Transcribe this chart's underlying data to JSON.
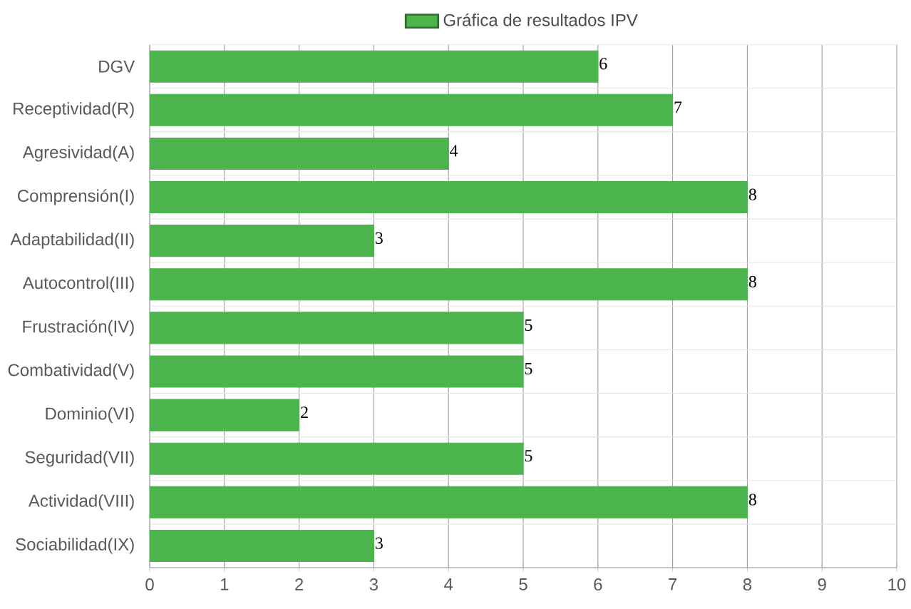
{
  "chart_data": {
    "type": "bar",
    "orientation": "horizontal",
    "categories": [
      "DGV",
      "Receptividad(R)",
      "Agresividad(A)",
      "Comprensión(I)",
      "Adaptabilidad(II)",
      "Autocontrol(III)",
      "Frustración(IV)",
      "Combatividad(V)",
      "Dominio(VI)",
      "Seguridad(VII)",
      "Actividad(VIII)",
      "Sociabilidad(IX)"
    ],
    "series": [
      {
        "name": "Gráfica de resultados IPV",
        "color": "#4cb44c",
        "values": [
          6,
          7,
          4,
          8,
          3,
          8,
          5,
          5,
          2,
          5,
          8,
          3
        ]
      }
    ],
    "xlim": [
      0,
      10
    ],
    "xticks": [
      0,
      1,
      2,
      3,
      4,
      5,
      6,
      7,
      8,
      9,
      10
    ],
    "grid": true,
    "legend": "top",
    "data_labels": true
  }
}
